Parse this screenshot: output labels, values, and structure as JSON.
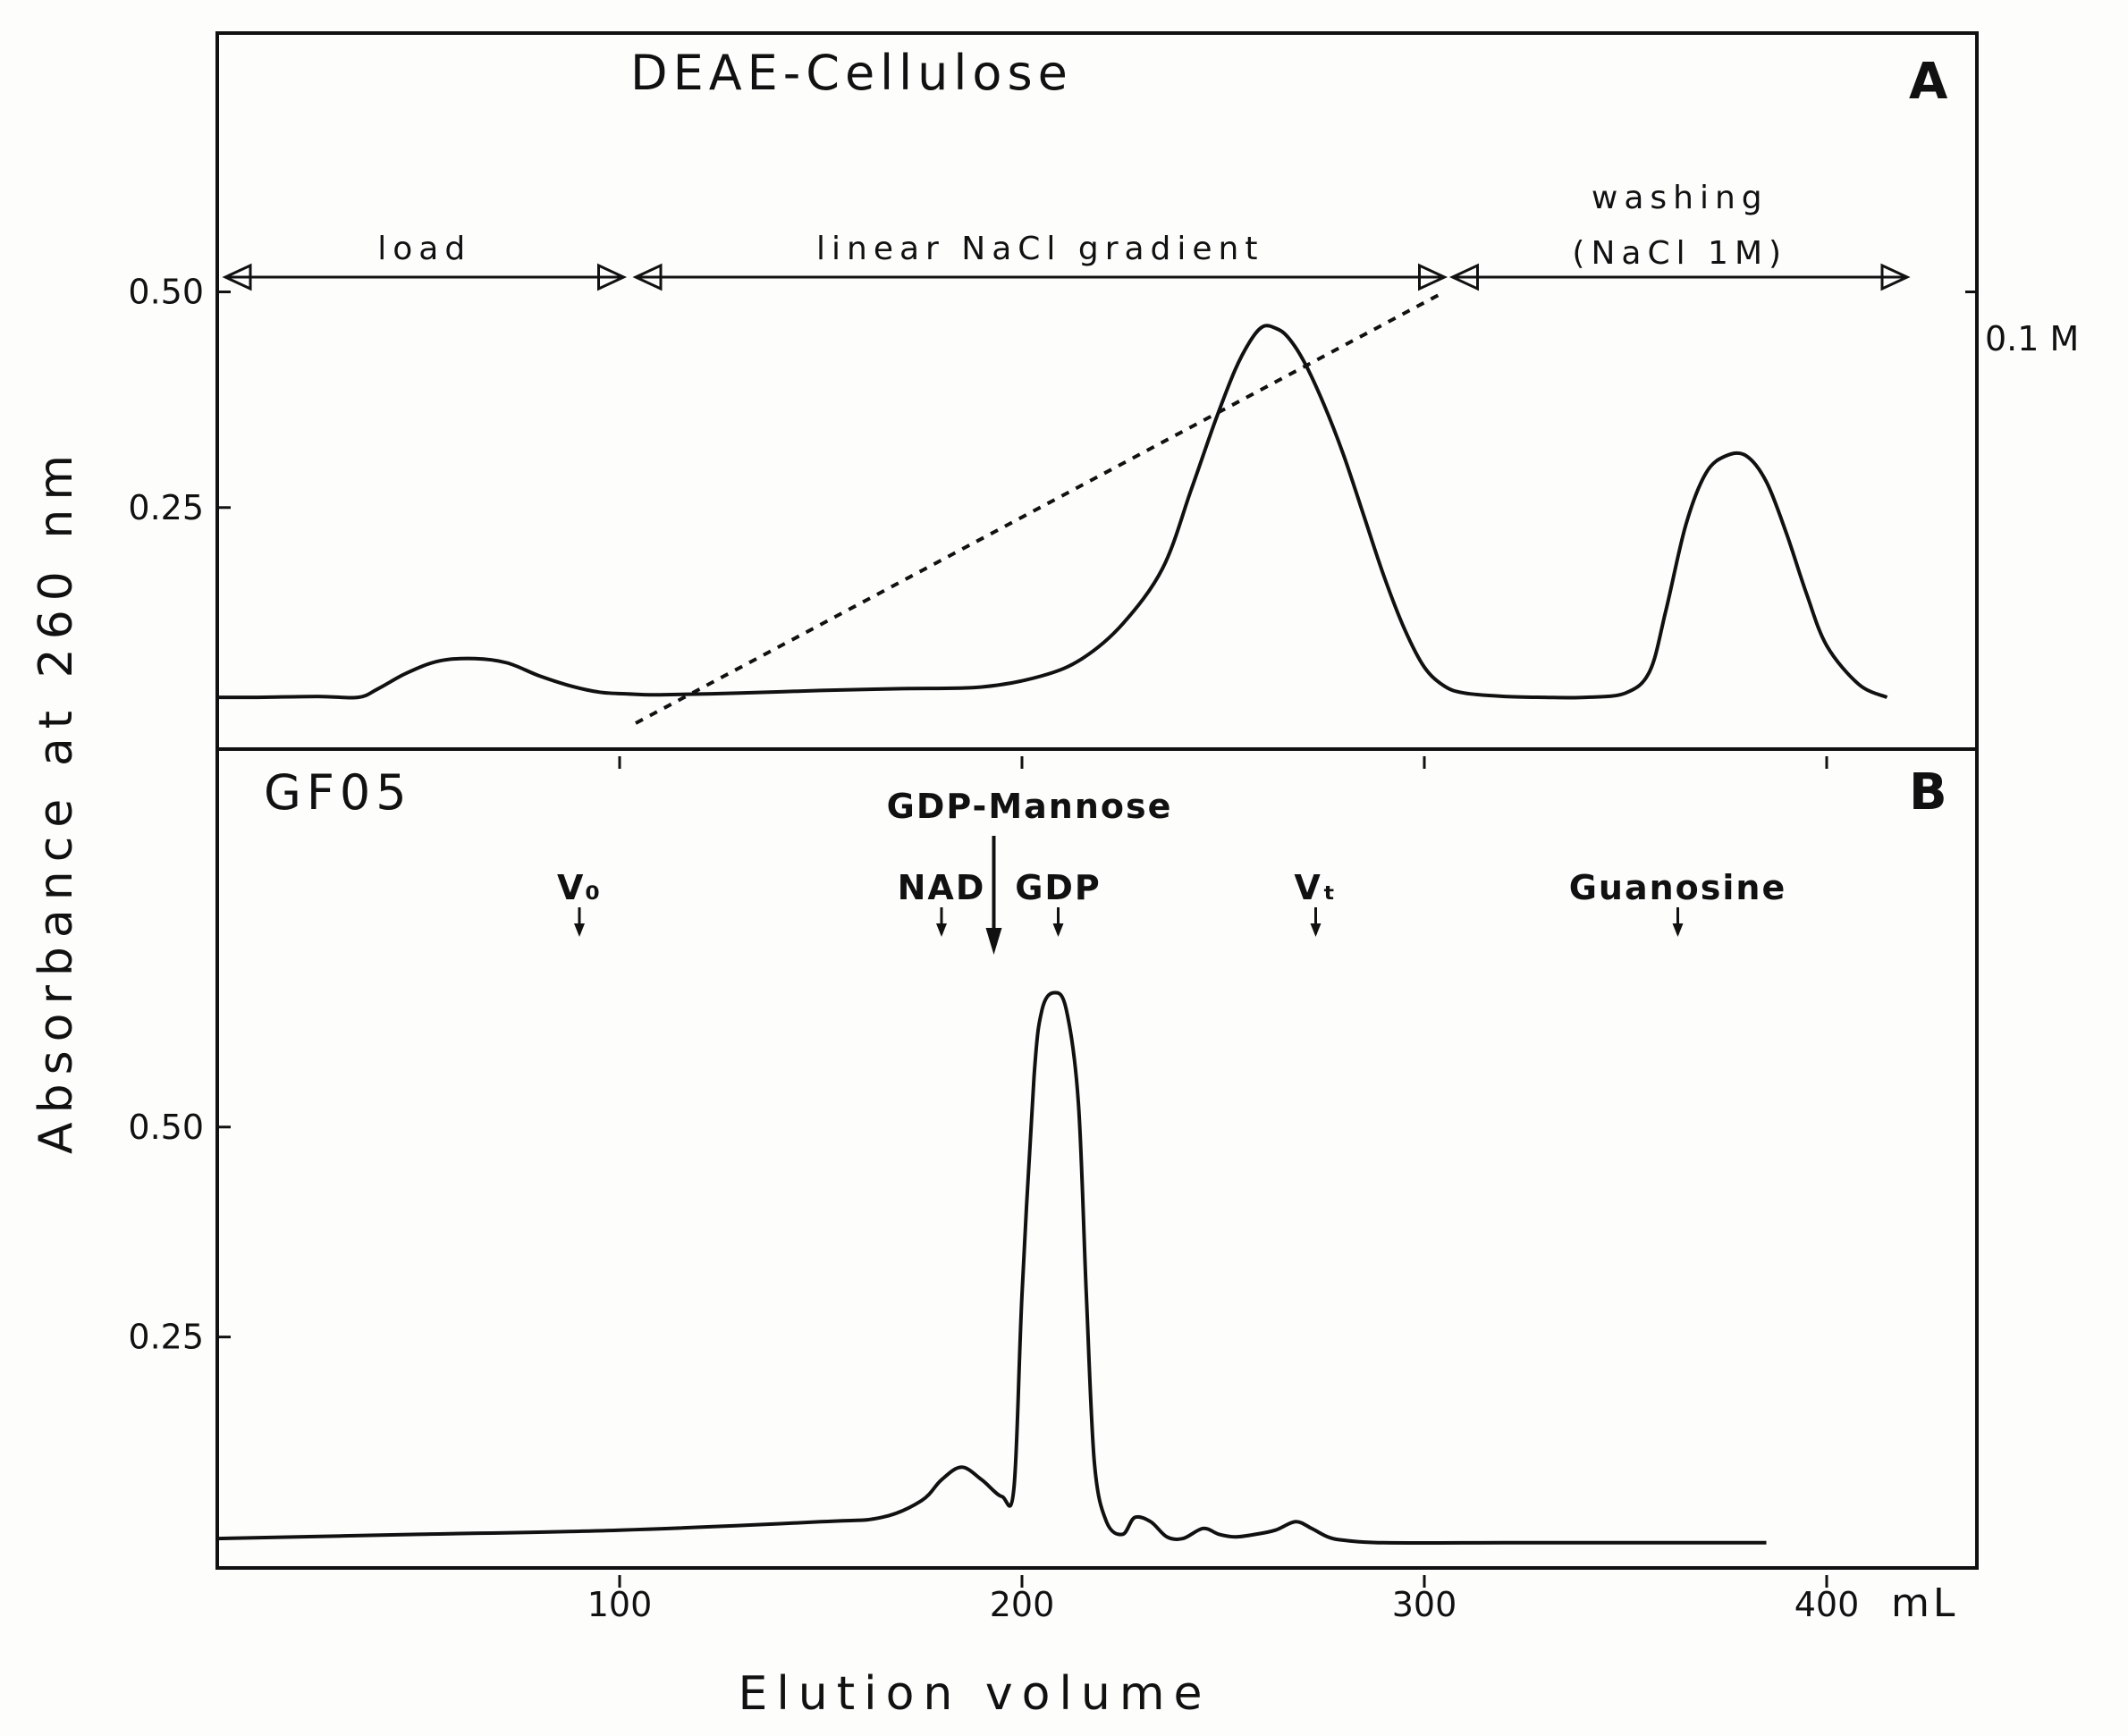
{
  "figure": {
    "ylabel": "Absorbance at 260 nm",
    "xlabel": "Elution volume",
    "x_unit": "mL"
  },
  "chart_data": [
    {
      "type": "line",
      "panel": "A",
      "title": "DEAE-Cellulose",
      "xlabel": "Elution volume",
      "ylabel": "Absorbance at 260 nm",
      "xlim": [
        0,
        440
      ],
      "ylim": [
        -0.03,
        0.8
      ],
      "y_ticks": [
        "0.25",
        "0.50"
      ],
      "y_tick_values": [
        0.25,
        0.5
      ],
      "right_axis_label": "0.1 M",
      "right_axis_value": 0.5,
      "segments": [
        {
          "label": "load",
          "from": 2,
          "to": 101
        },
        {
          "label": "linear NaCl gradient",
          "from": 104,
          "to": 305
        },
        {
          "label": "washing",
          "label2": "(NaCl 1M)",
          "from": 307,
          "to": 420
        }
      ],
      "series": [
        {
          "style": "solid",
          "x": [
            0,
            10,
            25,
            35,
            40,
            47,
            55,
            64,
            72,
            80,
            88,
            95,
            102,
            110,
            130,
            150,
            170,
            190,
            205,
            215,
            225,
            235,
            242,
            248,
            253,
            257,
            260,
            263,
            266,
            270,
            275,
            280,
            285,
            290,
            295,
            300,
            305,
            310,
            320,
            330,
            340,
            350,
            356,
            360,
            365,
            370,
            375,
            380,
            385,
            390,
            395,
            400,
            408,
            415
          ],
          "y": [
            0.03,
            0.03,
            0.031,
            0.03,
            0.04,
            0.058,
            0.072,
            0.075,
            0.07,
            0.055,
            0.043,
            0.036,
            0.034,
            0.033,
            0.035,
            0.038,
            0.04,
            0.042,
            0.055,
            0.075,
            0.115,
            0.18,
            0.27,
            0.35,
            0.41,
            0.445,
            0.46,
            0.458,
            0.448,
            0.42,
            0.37,
            0.31,
            0.24,
            0.17,
            0.11,
            0.065,
            0.043,
            0.035,
            0.031,
            0.03,
            0.03,
            0.035,
            0.06,
            0.13,
            0.23,
            0.29,
            0.31,
            0.31,
            0.28,
            0.22,
            0.15,
            0.09,
            0.045,
            0.03
          ]
        },
        {
          "style": "dashed",
          "x": [
            104,
            305
          ],
          "y": [
            0.0,
            0.5
          ]
        }
      ]
    },
    {
      "type": "line",
      "panel": "B",
      "title": "GF05",
      "xlabel": "Elution volume",
      "ylabel": "Absorbance at 260 nm",
      "xlim": [
        0,
        440
      ],
      "ylim": [
        -0.025,
        0.95
      ],
      "y_ticks": [
        "0.25",
        "0.50"
      ],
      "y_tick_values": [
        0.25,
        0.5
      ],
      "x_ticks": [
        "100",
        "200",
        "300",
        "400"
      ],
      "x_tick_values": [
        100,
        200,
        300,
        400
      ],
      "markers": [
        {
          "label": "V₀",
          "x": 90
        },
        {
          "label": "NAD",
          "x": 180
        },
        {
          "label": "GDP-Mannose",
          "x": 193,
          "emphasis": true
        },
        {
          "label": "GDP",
          "x": 209
        },
        {
          "label": "Vₜ",
          "x": 273
        },
        {
          "label": "Guanosine",
          "x": 363
        }
      ],
      "series": [
        {
          "style": "solid",
          "x": [
            0,
            50,
            100,
            150,
            165,
            175,
            180,
            185,
            190,
            195,
            198,
            200,
            203,
            205,
            208,
            211,
            214,
            216,
            218,
            221,
            225,
            228,
            232,
            236,
            240,
            245,
            249,
            253,
            258,
            263,
            268,
            272,
            276,
            280,
            290,
            320,
            350,
            385
          ],
          "y": [
            0.01,
            0.015,
            0.02,
            0.03,
            0.035,
            0.055,
            0.08,
            0.095,
            0.08,
            0.06,
            0.07,
            0.3,
            0.56,
            0.64,
            0.66,
            0.64,
            0.53,
            0.3,
            0.1,
            0.03,
            0.015,
            0.035,
            0.03,
            0.012,
            0.01,
            0.022,
            0.015,
            0.012,
            0.015,
            0.02,
            0.03,
            0.022,
            0.012,
            0.008,
            0.005,
            0.005,
            0.005,
            0.005
          ]
        }
      ]
    }
  ]
}
